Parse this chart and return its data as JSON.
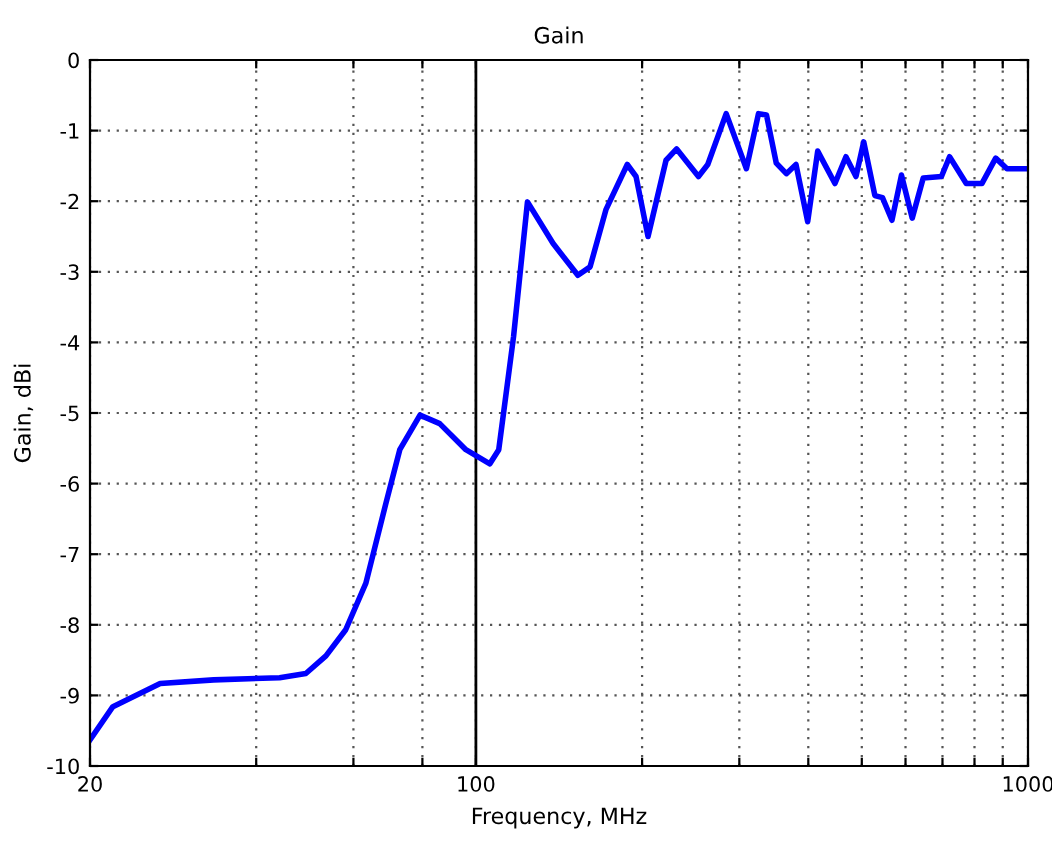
{
  "chart_data": {
    "type": "line",
    "title": "Gain",
    "xlabel": "Frequency, MHz",
    "ylabel": "Gain, dBi",
    "log": "x",
    "xlim": [
      20,
      1000
    ],
    "ylim": [
      -10,
      0
    ],
    "xticks": [
      20,
      {
        "value": 40,
        "label": null
      },
      {
        "value": 60,
        "label": null
      },
      {
        "value": 80,
        "label": null
      },
      100,
      {
        "value": 200,
        "label": null
      },
      {
        "value": 300,
        "label": null
      },
      {
        "value": 400,
        "label": null
      },
      {
        "value": 500,
        "label": null
      },
      {
        "value": 600,
        "label": null
      },
      {
        "value": 700,
        "label": null
      },
      {
        "value": 800,
        "label": null
      },
      {
        "value": 900,
        "label": null
      },
      1000
    ],
    "yticks": [
      -10,
      -9,
      -8,
      -7,
      -6,
      -5,
      -4,
      -3,
      -2,
      -1,
      0
    ],
    "grid": true,
    "marker": "none",
    "line_style": "solid",
    "ref_lines": [
      {
        "axis": "x",
        "value": 100,
        "color": "#000000"
      }
    ],
    "series": [
      {
        "color": "#0000ff",
        "x": [
          20,
          22,
          26.8,
          33.5,
          44.1,
          49.2,
          53.5,
          58.1,
          63.2,
          68.7,
          72.8,
          79.2,
          86,
          95.9,
          106,
          110,
          117,
          124,
          138,
          153,
          161,
          172,
          188,
          195,
          205,
          221,
          231,
          253,
          263,
          284,
          309,
          325,
          336,
          350,
          365,
          380,
          399,
          416,
          447,
          468,
          488,
          504,
          528,
          545,
          567,
          590,
          617,
          646,
          697,
          721,
          773,
          825,
          874,
          916,
          1000
        ],
        "values": [
          -9.63,
          -9.16,
          -8.83,
          -8.78,
          -8.75,
          -8.69,
          -8.44,
          -8.07,
          -7.41,
          -6.28,
          -5.52,
          -5.03,
          -5.15,
          -5.52,
          -5.72,
          -5.52,
          -3.92,
          -2.01,
          -2.6,
          -3.05,
          -2.93,
          -2.12,
          -1.48,
          -1.65,
          -2.5,
          -1.42,
          -1.26,
          -1.65,
          -1.48,
          -0.76,
          -1.54,
          -0.76,
          -0.78,
          -1.46,
          -1.61,
          -1.48,
          -2.29,
          -1.29,
          -1.75,
          -1.37,
          -1.65,
          -1.16,
          -1.92,
          -1.95,
          -2.27,
          -1.63,
          -2.24,
          -1.67,
          -1.65,
          -1.37,
          -1.75,
          -1.75,
          -1.39,
          -1.54,
          -1.54
        ]
      }
    ]
  }
}
